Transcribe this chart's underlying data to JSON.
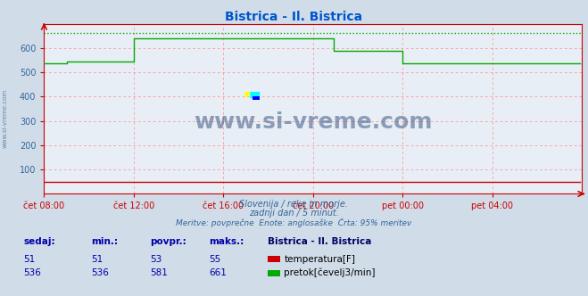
{
  "title": "Bistrica - Il. Bistrica",
  "title_color": "#0055cc",
  "bg_color": "#d0dce8",
  "plot_bg_color": "#e8eef5",
  "grid_color": "#ff8888",
  "xlabel_color": "#336699",
  "ylabel_color": "#336699",
  "x_tick_labels": [
    "čet 08:00",
    "čet 12:00",
    "čet 16:00",
    "čet 20:00",
    "pet 00:00",
    "pet 04:00"
  ],
  "x_tick_positions": [
    0,
    48,
    96,
    144,
    192,
    240
  ],
  "y_ticks": [
    100,
    200,
    300,
    400,
    500,
    600
  ],
  "ylim": [
    0,
    700
  ],
  "xlim": [
    0,
    288
  ],
  "subtitle1": "Slovenija / reke in morje.",
  "subtitle2": "zadnji dan / 5 minut.",
  "subtitle3": "Meritve: povprečne  Enote: anglosaške  Črta: 95% meritev",
  "subtitle_color": "#336699",
  "watermark": "www.si-vreme.com",
  "watermark_color": "#1a3a6e",
  "legend_title": "Bistrica - Il. Bistrica",
  "legend_title_color": "#000066",
  "legend_items": [
    {
      "label": "temperatura[F]",
      "color": "#cc0000"
    },
    {
      "label": "pretok[čevelj3/min]",
      "color": "#00aa00"
    }
  ],
  "table_headers": [
    "sedaj:",
    "min.:",
    "povpr.:",
    "maks.:"
  ],
  "table_rows": [
    {
      "sedaj": "51",
      "min": "51",
      "povpr": "53",
      "maks": "55"
    },
    {
      "sedaj": "536",
      "min": "536",
      "povpr": "581",
      "maks": "661"
    }
  ],
  "temp_color": "#cc0000",
  "flow_color": "#00aa00",
  "dotted_line_color": "#00aa00",
  "axis_color": "#cc0000",
  "n_points": 288,
  "temp_base": 51,
  "flow_segments": [
    {
      "start": 0,
      "end": 12,
      "value": 536
    },
    {
      "start": 12,
      "end": 48,
      "value": 546
    },
    {
      "start": 48,
      "end": 96,
      "value": 640
    },
    {
      "start": 96,
      "end": 120,
      "value": 640
    },
    {
      "start": 120,
      "end": 144,
      "value": 640
    },
    {
      "start": 144,
      "end": 155,
      "value": 640
    },
    {
      "start": 155,
      "end": 192,
      "value": 590
    },
    {
      "start": 192,
      "end": 200,
      "value": 536
    },
    {
      "start": 200,
      "end": 288,
      "value": 536
    }
  ],
  "dotted_y": 661
}
